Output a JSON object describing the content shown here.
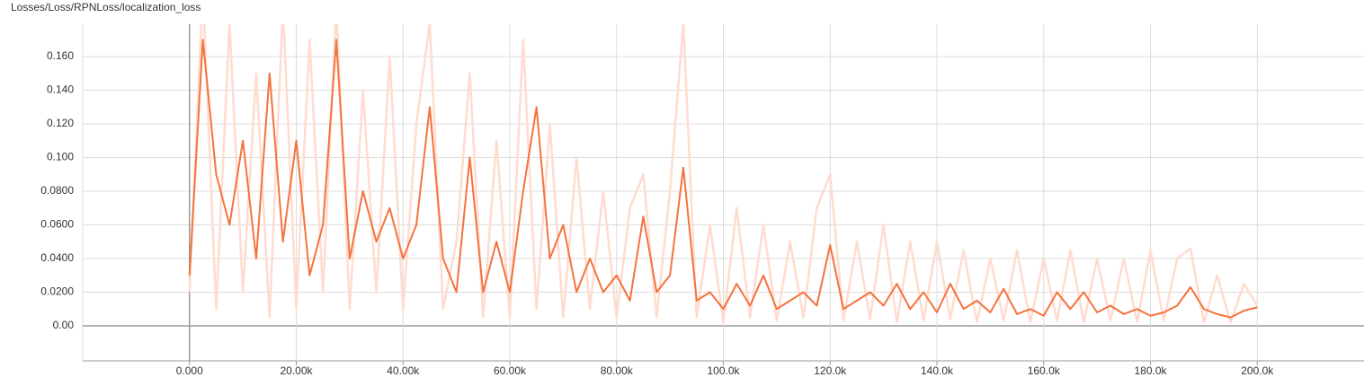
{
  "chart_data": {
    "type": "line",
    "title": "Losses/Loss/RPNLoss/localization_loss",
    "x": [
      0,
      2500,
      5000,
      7500,
      10000,
      12500,
      15000,
      17500,
      20000,
      22500,
      25000,
      27500,
      30000,
      32500,
      35000,
      37500,
      40000,
      42500,
      45000,
      47500,
      50000,
      52500,
      55000,
      57500,
      60000,
      62500,
      65000,
      67500,
      70000,
      72500,
      75000,
      77500,
      80000,
      82500,
      85000,
      87500,
      90000,
      92500,
      95000,
      97500,
      100000,
      102500,
      105000,
      107500,
      110000,
      112500,
      115000,
      117500,
      120000,
      122500,
      125000,
      127500,
      130000,
      132500,
      135000,
      137500,
      140000,
      142500,
      145000,
      147500,
      150000,
      152500,
      155000,
      157500,
      160000,
      162500,
      165000,
      167500,
      170000,
      172500,
      175000,
      177500,
      180000,
      182500,
      185000,
      187500,
      190000,
      192500,
      195000,
      197500,
      200000
    ],
    "series": [
      {
        "color": "#ffdccf",
        "values": [
          0.02,
          0.2,
          0.01,
          0.18,
          0.02,
          0.15,
          0.005,
          0.19,
          0.01,
          0.17,
          0.02,
          0.19,
          0.01,
          0.14,
          0.02,
          0.16,
          0.01,
          0.12,
          0.18,
          0.01,
          0.05,
          0.15,
          0.005,
          0.11,
          0.005,
          0.17,
          0.01,
          0.12,
          0.005,
          0.1,
          0.01,
          0.08,
          0.005,
          0.07,
          0.09,
          0.005,
          0.08,
          0.18,
          0.005,
          0.06,
          0.002,
          0.07,
          0.005,
          0.06,
          0.003,
          0.05,
          0.005,
          0.07,
          0.09,
          0.003,
          0.05,
          0.004,
          0.06,
          0.002,
          0.05,
          0.003,
          0.05,
          0.004,
          0.045,
          0.002,
          0.04,
          0.003,
          0.045,
          0.002,
          0.04,
          0.003,
          0.045,
          0.002,
          0.04,
          0.003,
          0.04,
          0.002,
          0.045,
          0.003,
          0.04,
          0.046,
          0.002,
          0.03,
          0.002,
          0.025,
          0.012
        ]
      },
      {
        "color": "#f4733e",
        "values": [
          0.03,
          0.17,
          0.09,
          0.06,
          0.11,
          0.04,
          0.15,
          0.05,
          0.11,
          0.03,
          0.06,
          0.17,
          0.04,
          0.08,
          0.05,
          0.07,
          0.04,
          0.06,
          0.13,
          0.04,
          0.02,
          0.1,
          0.02,
          0.05,
          0.02,
          0.08,
          0.13,
          0.04,
          0.06,
          0.02,
          0.04,
          0.02,
          0.03,
          0.015,
          0.065,
          0.02,
          0.03,
          0.094,
          0.015,
          0.02,
          0.01,
          0.025,
          0.012,
          0.03,
          0.01,
          0.015,
          0.02,
          0.012,
          0.048,
          0.01,
          0.015,
          0.02,
          0.012,
          0.025,
          0.01,
          0.02,
          0.008,
          0.025,
          0.01,
          0.015,
          0.008,
          0.022,
          0.007,
          0.01,
          0.006,
          0.02,
          0.01,
          0.02,
          0.008,
          0.012,
          0.007,
          0.01,
          0.006,
          0.008,
          0.012,
          0.023,
          0.01,
          0.007,
          0.005,
          0.009,
          0.011
        ]
      }
    ],
    "xlim": [
      -20000,
      220000
    ],
    "ylim": [
      -0.0208,
      0.1792
    ],
    "xticks": [
      {
        "value": 0,
        "label": "0.000"
      },
      {
        "value": 20000,
        "label": "20.00k"
      },
      {
        "value": 40000,
        "label": "40.00k"
      },
      {
        "value": 60000,
        "label": "60.00k"
      },
      {
        "value": 80000,
        "label": "80.00k"
      },
      {
        "value": 100000,
        "label": "100.0k"
      },
      {
        "value": 120000,
        "label": "120.0k"
      },
      {
        "value": 140000,
        "label": "140.0k"
      },
      {
        "value": 160000,
        "label": "160.0k"
      },
      {
        "value": 180000,
        "label": "180.0k"
      },
      {
        "value": 200000,
        "label": "200.0k"
      }
    ],
    "yticks": [
      {
        "value": 0,
        "label": "0.00"
      },
      {
        "value": 0.02,
        "label": "0.0200"
      },
      {
        "value": 0.04,
        "label": "0.0400"
      },
      {
        "value": 0.06,
        "label": "0.0600"
      },
      {
        "value": 0.08,
        "label": "0.0800"
      },
      {
        "value": 0.1,
        "label": "0.100"
      },
      {
        "value": 0.12,
        "label": "0.120"
      },
      {
        "value": 0.14,
        "label": "0.140"
      },
      {
        "value": 0.16,
        "label": "0.160"
      }
    ],
    "grid": true
  }
}
